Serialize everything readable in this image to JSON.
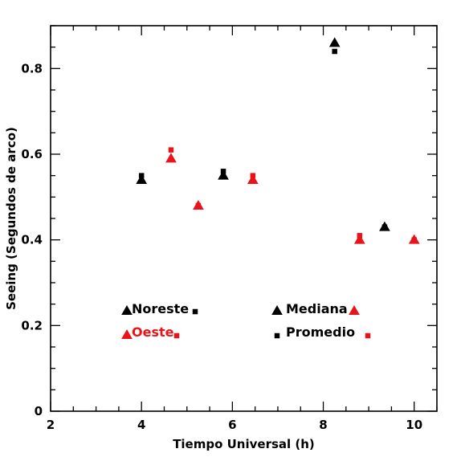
{
  "colors": {
    "noreste": "#000000",
    "oeste": "#e8141a",
    "frame": "#000000",
    "background": "#ffffff"
  },
  "chart_data": {
    "type": "scatter",
    "xlabel": "Tiempo Universal (h)",
    "ylabel": "Seeing (Segundos de arco)",
    "xlim": [
      2,
      10.5
    ],
    "ylim": [
      0,
      0.9
    ],
    "x_ticks": [
      2,
      4,
      6,
      8,
      10
    ],
    "x_tick_labels": [
      "2",
      "4",
      "6",
      "8",
      "10"
    ],
    "y_ticks": [
      0,
      0.2,
      0.4,
      0.6,
      0.8
    ],
    "y_tick_labels": [
      "0",
      "0.2",
      "0.4",
      "0.6",
      "0.8"
    ],
    "x_minor_step": 0.5,
    "y_minor_step": 0.05,
    "grid": false,
    "legend": {
      "series_entries": [
        {
          "label": "Noreste",
          "color_key": "noreste"
        },
        {
          "label": "Oeste",
          "color_key": "oeste"
        }
      ],
      "statistic_entries": [
        {
          "label": "Mediana",
          "marker": "triangle"
        },
        {
          "label": "Promedio",
          "marker": "square"
        }
      ]
    },
    "series": [
      {
        "name": "Noreste",
        "color_key": "noreste",
        "median": [
          [
            4.0,
            0.54
          ],
          [
            5.8,
            0.55
          ],
          [
            8.25,
            0.86
          ],
          [
            9.35,
            0.43
          ]
        ],
        "mean": [
          [
            4.0,
            0.55
          ],
          [
            5.8,
            0.56
          ],
          [
            8.25,
            0.84
          ],
          [
            9.35,
            0.43
          ]
        ]
      },
      {
        "name": "Oeste",
        "color_key": "oeste",
        "median": [
          [
            4.65,
            0.59
          ],
          [
            5.25,
            0.48
          ],
          [
            6.45,
            0.54
          ],
          [
            8.8,
            0.4
          ],
          [
            10.0,
            0.4
          ]
        ],
        "mean": [
          [
            4.65,
            0.61
          ],
          [
            5.25,
            0.48
          ],
          [
            6.45,
            0.55
          ],
          [
            8.8,
            0.41
          ],
          [
            10.0,
            0.4
          ]
        ]
      }
    ]
  }
}
